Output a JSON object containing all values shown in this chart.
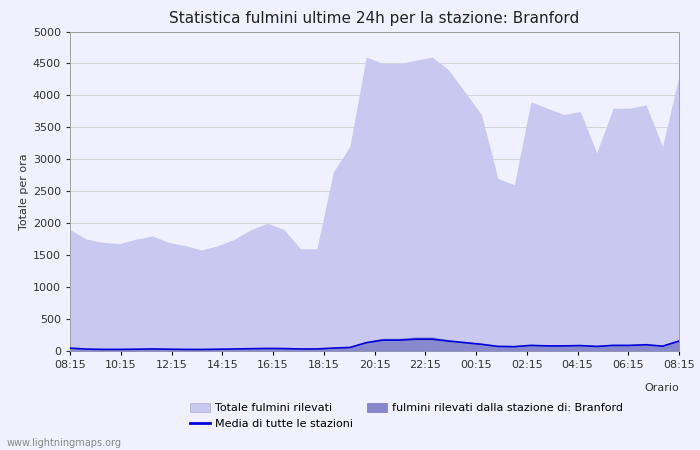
{
  "title": "Statistica fulmini ultime 24h per la stazione: Branford",
  "xlabel": "Orario",
  "ylabel": "Totale per ora",
  "watermark": "www.lightningmaps.org",
  "legend_labels": [
    "Totale fulmini rilevati",
    "fulmini rilevati dalla stazione di: Branford",
    "Media di tutte le stazioni"
  ],
  "x_ticks": [
    "08:15",
    "10:15",
    "12:15",
    "14:15",
    "16:15",
    "18:15",
    "20:15",
    "22:15",
    "00:15",
    "02:15",
    "04:15",
    "06:15",
    "08:15"
  ],
  "ylim": [
    0,
    5000
  ],
  "yticks": [
    0,
    500,
    1000,
    1500,
    2000,
    2500,
    3000,
    3500,
    4000,
    4500,
    5000
  ],
  "color_total_fill": "#c8c8f0",
  "color_station_fill": "#8888cc",
  "color_media_line": "#0000dd",
  "background_color": "#f0f0ff",
  "grid_color": "#d0d0d0",
  "spine_color": "#a0a0a0",
  "total_values": [
    1900,
    1750,
    1700,
    1680,
    1750,
    1800,
    1700,
    1650,
    1580,
    1650,
    1750,
    1900,
    2000,
    1900,
    1600,
    1600,
    2800,
    3200,
    4600,
    4500,
    4500,
    4550,
    4600,
    4400,
    4050,
    3700,
    2700,
    2600,
    3900,
    3800,
    3700,
    3750,
    3100,
    3800,
    3800,
    3850,
    3200,
    4300
  ],
  "station_values": [
    50,
    30,
    25,
    25,
    30,
    35,
    30,
    25,
    25,
    30,
    35,
    40,
    45,
    40,
    35,
    35,
    50,
    60,
    150,
    200,
    200,
    220,
    220,
    180,
    150,
    120,
    80,
    75,
    100,
    90,
    90,
    95,
    80,
    100,
    100,
    110,
    85,
    180
  ],
  "media_values": [
    45,
    30,
    25,
    25,
    28,
    32,
    28,
    25,
    24,
    28,
    32,
    36,
    40,
    38,
    32,
    32,
    46,
    55,
    130,
    170,
    170,
    185,
    185,
    155,
    130,
    105,
    72,
    68,
    88,
    80,
    80,
    85,
    72,
    88,
    88,
    98,
    76,
    155
  ]
}
